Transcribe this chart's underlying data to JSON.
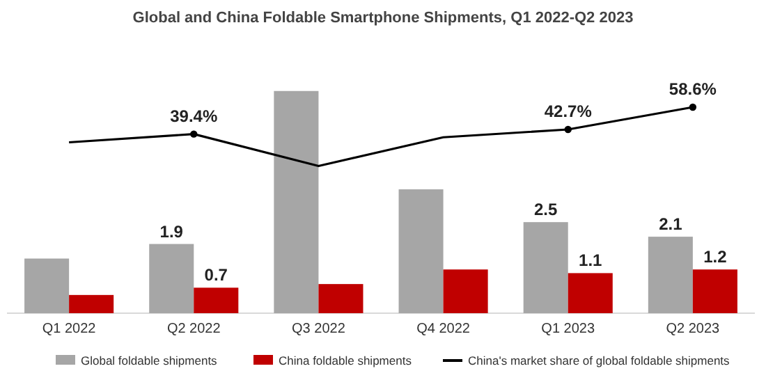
{
  "chart_data": {
    "type": "bar",
    "title": "Global and China Foldable Smartphone Shipments, Q1 2022-Q2 2023",
    "categories": [
      "Q1 2022",
      "Q2 2022",
      "Q3 2022",
      "Q4 2022",
      "Q1 2023",
      "Q2 2023"
    ],
    "series": [
      {
        "name": "Global foldable shipments",
        "color": "#a6a6a6",
        "values": [
          1.5,
          1.9,
          6.1,
          3.4,
          2.5,
          2.1
        ],
        "value_labels": [
          null,
          "1.9",
          null,
          null,
          "2.5",
          "2.1"
        ]
      },
      {
        "name": "China foldable shipments",
        "color": "#c00000",
        "values": [
          0.5,
          0.7,
          0.8,
          1.2,
          1.1,
          1.2
        ],
        "value_labels": [
          null,
          "0.7",
          null,
          null,
          "1.1",
          "1.2"
        ]
      },
      {
        "name": "China's market share of global foldable shipments",
        "type": "line",
        "axis": "y2",
        "color": "#000000",
        "values": [
          33.5,
          39.4,
          16.6,
          37.1,
          42.7,
          58.6
        ],
        "value_labels": [
          null,
          "39.4%",
          null,
          null,
          "42.7%",
          "58.6%"
        ]
      }
    ],
    "legend": "bottom"
  }
}
